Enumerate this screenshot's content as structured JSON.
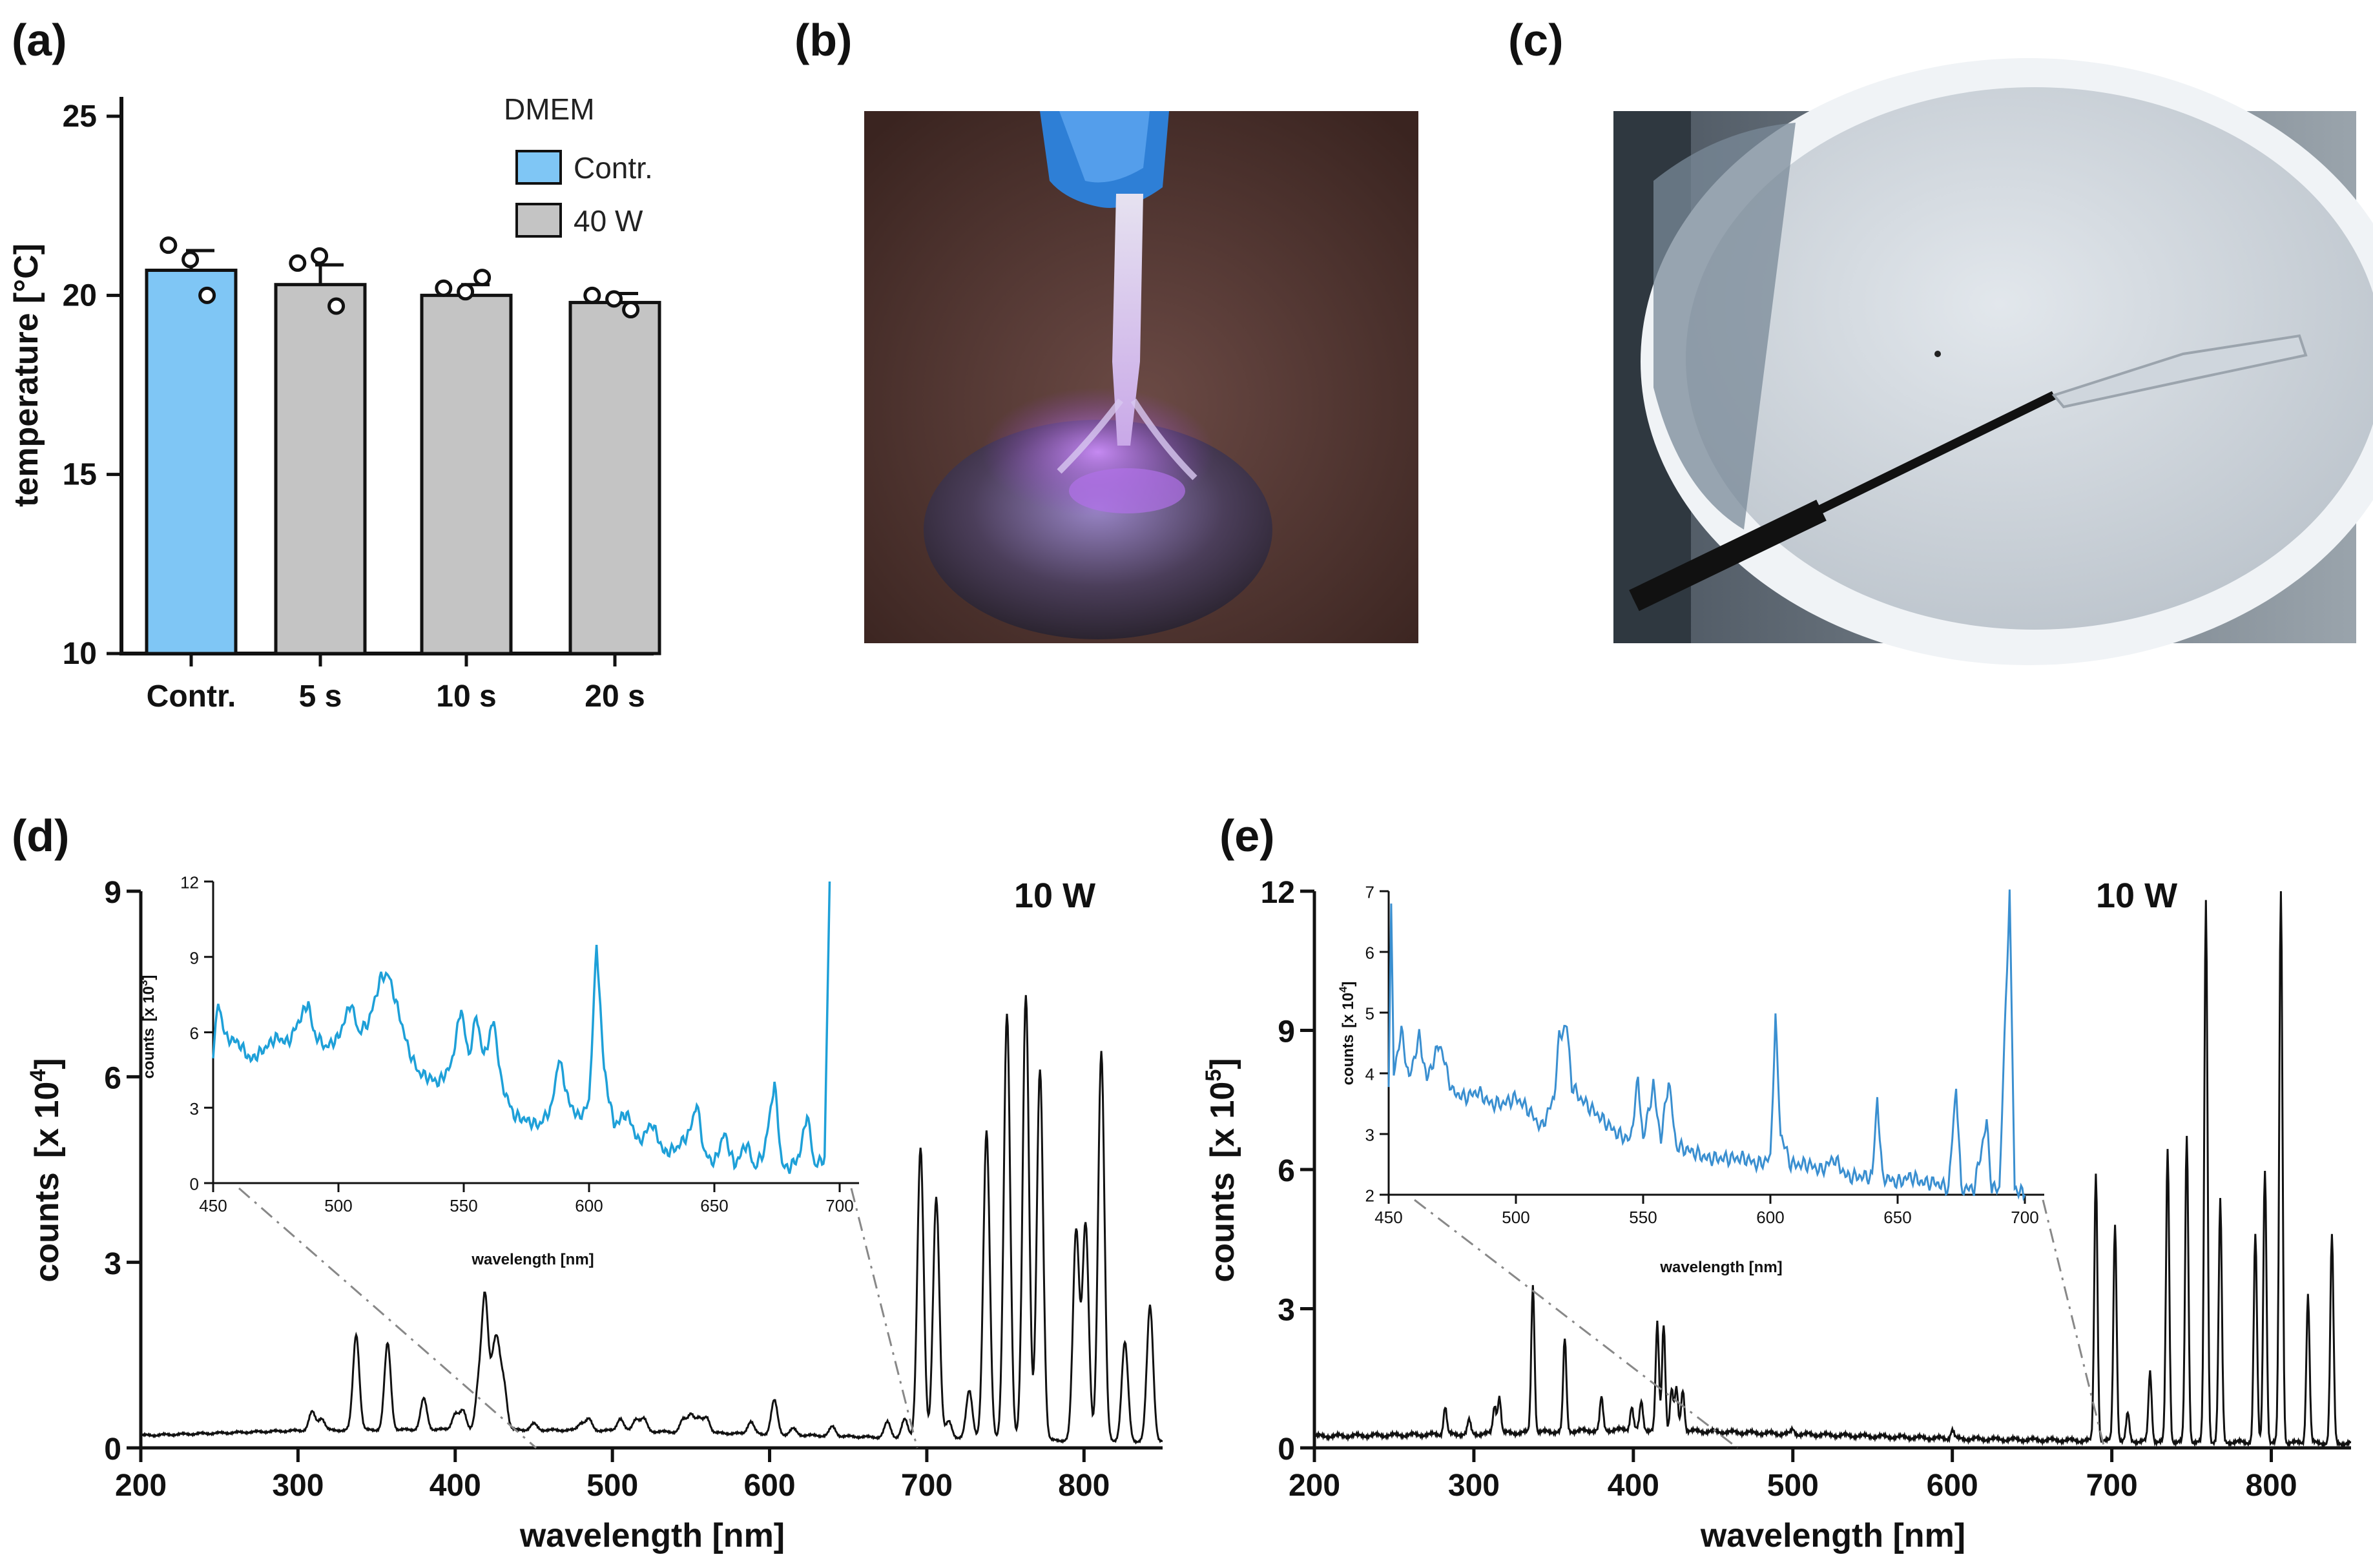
{
  "panels": {
    "a": "(a)",
    "b": "(b)",
    "c": "(c)",
    "d": "(d)",
    "e": "(e)"
  },
  "colors": {
    "contr_bar": "#7fc6f5",
    "treated_bar": "#c4c4c4",
    "inset_d": "#1ea0d8",
    "inset_e": "#3a8fd0",
    "spectrum": "#111111"
  },
  "photos": {
    "b": "plasma-jet-on-droplet-photo",
    "c": "probe-in-dish-photo"
  },
  "chart_data": [
    {
      "id": "a",
      "type": "bar",
      "title": "",
      "ylabel": "temperature  [°C]",
      "xlabel": "",
      "ylim": [
        10,
        25
      ],
      "yticks": [
        10,
        15,
        20,
        25
      ],
      "categories": [
        "Contr.",
        "5 s",
        "10 s",
        "20 s"
      ],
      "values": [
        20.7,
        20.3,
        20.0,
        19.8
      ],
      "sem": [
        0.55,
        0.55,
        0.3,
        0.25
      ],
      "points": [
        [
          21.4,
          21.0,
          20.0
        ],
        [
          20.9,
          21.1,
          19.7
        ],
        [
          20.2,
          20.1,
          20.5
        ],
        [
          20.0,
          19.9,
          19.6
        ]
      ],
      "legend_title": "DMEM",
      "legend": [
        "Contr.",
        "40 W"
      ],
      "legend_position": "top-right"
    },
    {
      "id": "d",
      "type": "line",
      "power_label": "10 W",
      "xlabel": "wavelength [nm]",
      "ylabel_main": "counts",
      "ylabel_unit": "[x 10",
      "ylabel_exp": "4",
      "ylabel_close": "]",
      "xlim": [
        200,
        850
      ],
      "ylim": [
        0,
        9
      ],
      "xticks": [
        200,
        300,
        400,
        500,
        600,
        700,
        800
      ],
      "yticks": [
        0,
        3,
        6,
        9
      ],
      "baseline": [
        [
          200,
          0.2
        ],
        [
          300,
          0.28
        ],
        [
          400,
          0.3
        ],
        [
          500,
          0.28
        ],
        [
          600,
          0.22
        ],
        [
          700,
          0.15
        ],
        [
          850,
          0.1
        ]
      ],
      "peaks": [
        [
          309,
          0.3
        ],
        [
          315,
          0.2
        ],
        [
          337,
          1.55
        ],
        [
          357,
          1.4
        ],
        [
          380,
          0.5
        ],
        [
          400,
          0.25
        ],
        [
          405,
          0.3
        ],
        [
          415,
          0.7
        ],
        [
          419,
          2.1
        ],
        [
          424,
          0.85
        ],
        [
          427,
          1.1
        ],
        [
          431,
          0.7
        ],
        [
          450,
          0.1
        ],
        [
          480,
          0.12
        ],
        [
          485,
          0.18
        ],
        [
          505,
          0.2
        ],
        [
          515,
          0.2
        ],
        [
          520,
          0.2
        ],
        [
          545,
          0.2
        ],
        [
          550,
          0.3
        ],
        [
          555,
          0.22
        ],
        [
          560,
          0.25
        ],
        [
          588,
          0.2
        ],
        [
          603,
          0.55
        ],
        [
          615,
          0.1
        ],
        [
          640,
          0.15
        ],
        [
          675,
          0.25
        ],
        [
          686,
          0.3
        ],
        [
          696,
          4.7
        ],
        [
          706,
          3.9
        ],
        [
          714,
          0.3
        ],
        [
          727,
          0.8
        ],
        [
          738,
          5.0
        ],
        [
          751,
          6.9
        ],
        [
          763,
          7.2
        ],
        [
          772,
          6.0
        ],
        [
          795,
          3.4
        ],
        [
          801,
          3.5
        ],
        [
          811,
          6.3
        ],
        [
          826,
          1.6
        ],
        [
          842,
          2.2
        ]
      ],
      "annotation": "10 W"
    },
    {
      "id": "d-inset",
      "type": "line",
      "xlabel": "wavelength [nm]",
      "ylabel_main": "counts",
      "ylabel_unit": "[x 10",
      "ylabel_exp": "3",
      "ylabel_close": "]",
      "xlim": [
        450,
        700
      ],
      "ylim": [
        0,
        12
      ],
      "xticks": [
        450,
        500,
        550,
        600,
        650,
        700
      ],
      "yticks": [
        0,
        3,
        6,
        9,
        12
      ],
      "values": [
        [
          450,
          5.2
        ],
        [
          452,
          7.2
        ],
        [
          455,
          5.8
        ],
        [
          460,
          5.6
        ],
        [
          465,
          4.9
        ],
        [
          470,
          5.3
        ],
        [
          475,
          5.8
        ],
        [
          480,
          5.6
        ],
        [
          485,
          6.6
        ],
        [
          488,
          7.2
        ],
        [
          490,
          6.0
        ],
        [
          495,
          5.4
        ],
        [
          500,
          5.8
        ],
        [
          505,
          7.2
        ],
        [
          508,
          6.0
        ],
        [
          512,
          6.4
        ],
        [
          517,
          8.2
        ],
        [
          520,
          8.3
        ],
        [
          524,
          6.8
        ],
        [
          528,
          5.3
        ],
        [
          532,
          4.4
        ],
        [
          536,
          4.2
        ],
        [
          540,
          4.0
        ],
        [
          545,
          4.7
        ],
        [
          549,
          7.0
        ],
        [
          552,
          5.0
        ],
        [
          555,
          6.7
        ],
        [
          558,
          5.0
        ],
        [
          562,
          6.5
        ],
        [
          565,
          4.0
        ],
        [
          570,
          2.7
        ],
        [
          575,
          2.5
        ],
        [
          580,
          2.3
        ],
        [
          585,
          3.0
        ],
        [
          588,
          5.0
        ],
        [
          592,
          3.2
        ],
        [
          596,
          2.6
        ],
        [
          600,
          3.2
        ],
        [
          603,
          9.5
        ],
        [
          606,
          4.5
        ],
        [
          610,
          2.3
        ],
        [
          615,
          2.8
        ],
        [
          620,
          1.6
        ],
        [
          625,
          2.4
        ],
        [
          630,
          1.2
        ],
        [
          635,
          1.4
        ],
        [
          640,
          2.0
        ],
        [
          643,
          3.2
        ],
        [
          646,
          1.2
        ],
        [
          650,
          0.8
        ],
        [
          654,
          2.0
        ],
        [
          658,
          0.7
        ],
        [
          663,
          1.6
        ],
        [
          666,
          0.6
        ],
        [
          670,
          1.3
        ],
        [
          674,
          4.0
        ],
        [
          677,
          0.7
        ],
        [
          680,
          0.6
        ],
        [
          684,
          1.1
        ],
        [
          687,
          2.8
        ],
        [
          690,
          0.7
        ],
        [
          694,
          1.0
        ],
        [
          696,
          12.0
        ]
      ]
    },
    {
      "id": "e",
      "type": "line",
      "power_label": "10 W",
      "xlabel": "wavelength [nm]",
      "ylabel_main": "counts",
      "ylabel_unit": "[x 10",
      "ylabel_exp": "5",
      "ylabel_close": "]",
      "xlim": [
        200,
        850
      ],
      "ylim": [
        0,
        12
      ],
      "xticks": [
        200,
        300,
        400,
        500,
        600,
        700,
        800
      ],
      "yticks": [
        0,
        3,
        6,
        9,
        12
      ],
      "baseline": [
        [
          200,
          0.25
        ],
        [
          300,
          0.3
        ],
        [
          400,
          0.4
        ],
        [
          500,
          0.3
        ],
        [
          600,
          0.2
        ],
        [
          700,
          0.15
        ],
        [
          850,
          0.1
        ]
      ],
      "peaks": [
        [
          282,
          0.6
        ],
        [
          297,
          0.3
        ],
        [
          313,
          0.6
        ],
        [
          316,
          0.8
        ],
        [
          337,
          3.2
        ],
        [
          357,
          2.0
        ],
        [
          380,
          0.7
        ],
        [
          399,
          0.5
        ],
        [
          405,
          0.6
        ],
        [
          415,
          2.3
        ],
        [
          419,
          2.3
        ],
        [
          424,
          0.9
        ],
        [
          427,
          0.9
        ],
        [
          431,
          0.9
        ],
        [
          500,
          0.1
        ],
        [
          600,
          0.2
        ],
        [
          690,
          5.8
        ],
        [
          702,
          4.7
        ],
        [
          710,
          0.6
        ],
        [
          724,
          1.5
        ],
        [
          735,
          6.3
        ],
        [
          747,
          6.6
        ],
        [
          759,
          11.7
        ],
        [
          768,
          5.2
        ],
        [
          790,
          4.5
        ],
        [
          796,
          5.9
        ],
        [
          806,
          12.0
        ],
        [
          823,
          3.2
        ],
        [
          838,
          4.5
        ]
      ],
      "annotation": "10 W"
    },
    {
      "id": "e-inset",
      "type": "line",
      "xlabel": "wavelength [nm]",
      "ylabel_main": "counts",
      "ylabel_unit": "[x 10",
      "ylabel_exp": "4",
      "ylabel_close": "]",
      "xlim": [
        450,
        700
      ],
      "ylim": [
        2,
        7
      ],
      "xticks": [
        450,
        500,
        550,
        600,
        650,
        700
      ],
      "yticks": [
        2,
        3,
        4,
        5,
        6,
        7
      ],
      "values": [
        [
          450,
          3.9
        ],
        [
          451,
          6.7
        ],
        [
          452,
          4.0
        ],
        [
          455,
          4.7
        ],
        [
          458,
          3.9
        ],
        [
          462,
          4.6
        ],
        [
          465,
          3.9
        ],
        [
          470,
          4.5
        ],
        [
          475,
          3.7
        ],
        [
          480,
          3.6
        ],
        [
          485,
          3.7
        ],
        [
          490,
          3.5
        ],
        [
          495,
          3.5
        ],
        [
          500,
          3.6
        ],
        [
          505,
          3.4
        ],
        [
          510,
          3.1
        ],
        [
          515,
          3.6
        ],
        [
          517,
          4.6
        ],
        [
          520,
          4.8
        ],
        [
          522,
          3.8
        ],
        [
          525,
          3.6
        ],
        [
          530,
          3.4
        ],
        [
          535,
          3.2
        ],
        [
          540,
          3.0
        ],
        [
          545,
          2.9
        ],
        [
          548,
          3.9
        ],
        [
          550,
          2.9
        ],
        [
          554,
          3.8
        ],
        [
          557,
          2.9
        ],
        [
          560,
          3.9
        ],
        [
          563,
          2.8
        ],
        [
          570,
          2.7
        ],
        [
          575,
          2.6
        ],
        [
          580,
          2.6
        ],
        [
          585,
          2.6
        ],
        [
          590,
          2.6
        ],
        [
          595,
          2.5
        ],
        [
          600,
          2.6
        ],
        [
          602,
          4.9
        ],
        [
          604,
          3.0
        ],
        [
          608,
          2.5
        ],
        [
          615,
          2.5
        ],
        [
          620,
          2.4
        ],
        [
          625,
          2.6
        ],
        [
          630,
          2.3
        ],
        [
          635,
          2.3
        ],
        [
          640,
          2.3
        ],
        [
          642,
          3.6
        ],
        [
          644,
          2.3
        ],
        [
          650,
          2.2
        ],
        [
          655,
          2.3
        ],
        [
          660,
          2.2
        ],
        [
          665,
          2.2
        ],
        [
          670,
          2.1
        ],
        [
          673,
          3.8
        ],
        [
          675,
          2.1
        ],
        [
          680,
          2.1
        ],
        [
          685,
          3.2
        ],
        [
          687,
          2.1
        ],
        [
          690,
          2.1
        ],
        [
          694,
          7.0
        ],
        [
          696,
          2.1
        ],
        [
          700,
          2.0
        ]
      ]
    }
  ]
}
